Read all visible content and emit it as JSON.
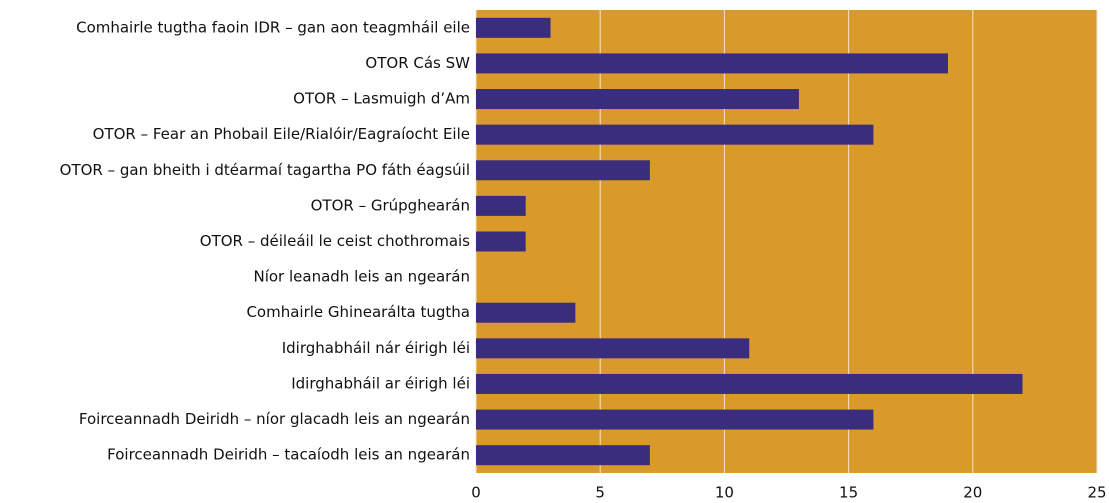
{
  "chart_data": {
    "type": "bar",
    "orientation": "horizontal",
    "categories": [
      "Comhairle tugtha faoin IDR – gan aon teagmháil eile",
      "OTOR Cás SW",
      "OTOR – Lasmuigh d’Am",
      "OTOR – Fear an Phobail Eile/Rialóir/Eagraíocht Eile",
      "OTOR – gan bheith i dtéarmaí tagartha PO fáth éagsúil",
      "OTOR – Grúpghearán",
      "OTOR – déileáil le ceist chothromais",
      "Níor leanadh leis an ngearán",
      "Comhairle Ghinearálta tugtha",
      "Idirghabháil nár éirigh léi",
      "Idirghabháil ar éirigh léi",
      "Foirceannadh Deiridh – níor glacadh leis an ngearán",
      "Foirceannadh Deiridh – tacaíodh leis an ngearán"
    ],
    "values": [
      3,
      19,
      13,
      16,
      7,
      2,
      2,
      0,
      4,
      11,
      22,
      16,
      7
    ],
    "color": "#3b2d7e",
    "background": "#d99a2b",
    "xlim": [
      0,
      25
    ],
    "xticks": [
      0,
      5,
      10,
      15,
      20,
      25
    ],
    "grid": true
  }
}
